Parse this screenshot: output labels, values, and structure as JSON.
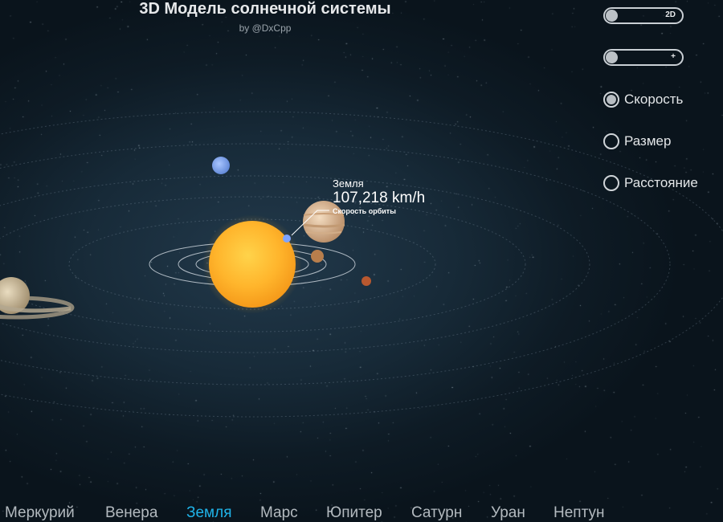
{
  "header": {
    "title": "3D Модель солнечной системы",
    "subtitle": "by @DxCpp"
  },
  "controls": {
    "toggle_view": {
      "label": "2D"
    },
    "toggle_zoom": {
      "label": "+"
    },
    "options": [
      {
        "label": "Скорость",
        "selected": true
      },
      {
        "label": "Размер",
        "selected": false
      },
      {
        "label": "Расстояние",
        "selected": false
      }
    ]
  },
  "tooltip": {
    "planet": "Земля",
    "speed": "107,218 km/h",
    "caption": "Скорость орбиты"
  },
  "nav": {
    "active": "Земля",
    "items": [
      "Меркурий",
      "Венера",
      "Земля",
      "Марс",
      "Юпитер",
      "Сатурн",
      "Уран",
      "Нептун"
    ]
  },
  "colors": {
    "accent": "#1fb3e8",
    "sun": "#ffb12a",
    "background": "#172a38"
  }
}
